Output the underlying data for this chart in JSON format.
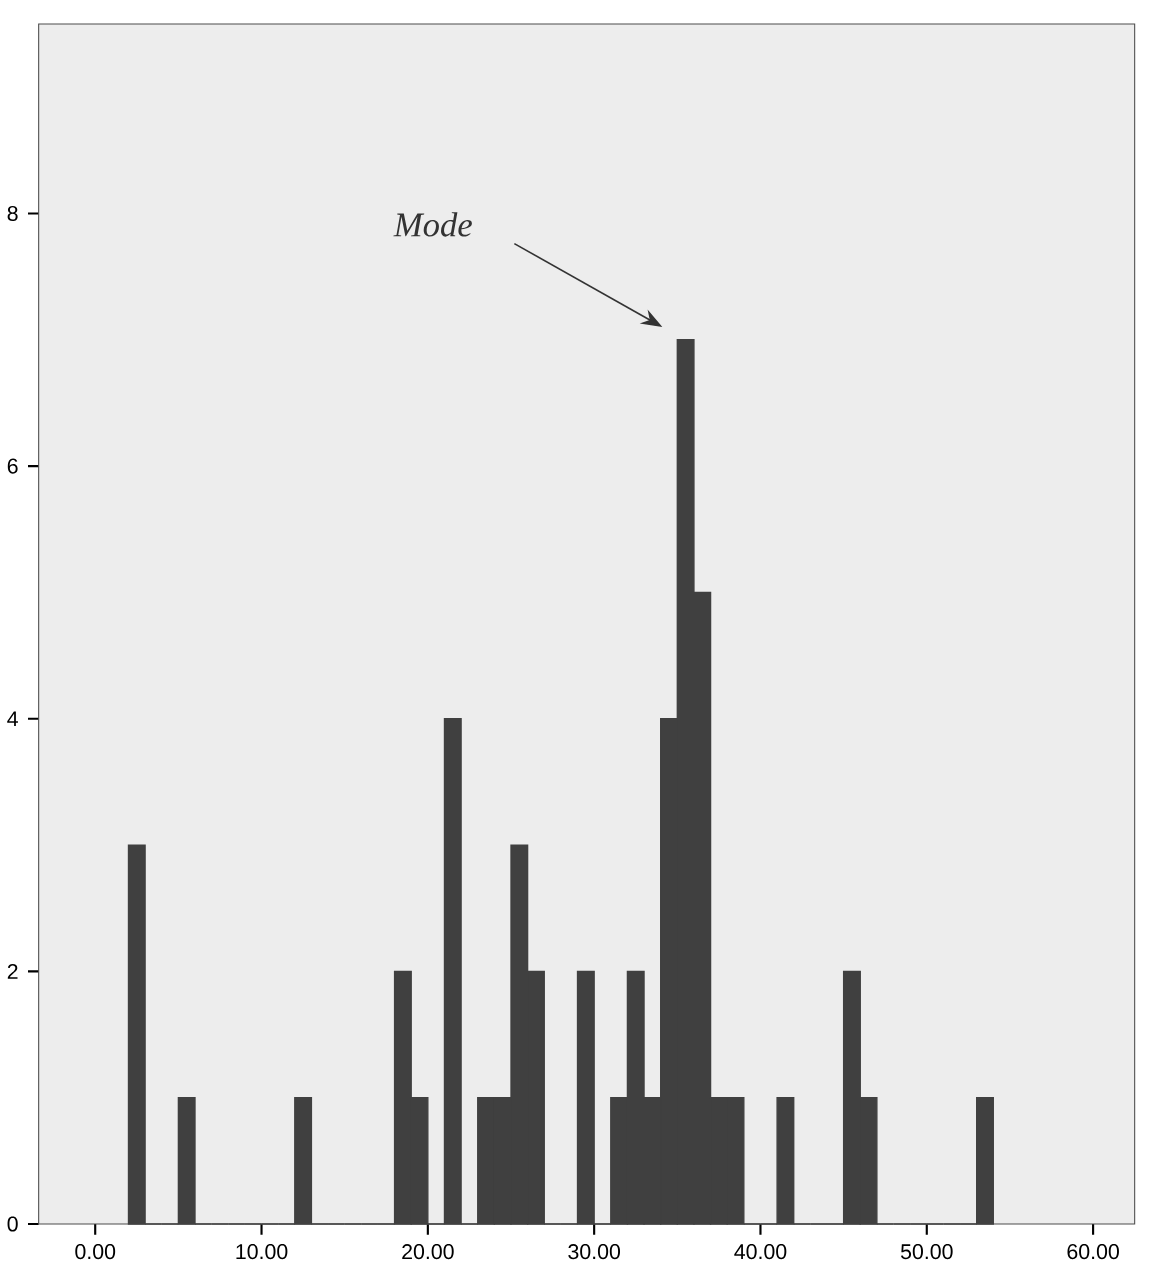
{
  "chart_data": {
    "type": "histogram",
    "color": "#404040",
    "bins": [
      2,
      3,
      4,
      5,
      6,
      7,
      8,
      9,
      10,
      11,
      12,
      13,
      14,
      15,
      16,
      17,
      18,
      19,
      20,
      21,
      22,
      23,
      24,
      25,
      26,
      27,
      28,
      29,
      30,
      31,
      32,
      33,
      34,
      35,
      36,
      37,
      38,
      39,
      40,
      41,
      42,
      43,
      44,
      45,
      46,
      47,
      48,
      49,
      50,
      51,
      52,
      53,
      54
    ],
    "values": [
      3,
      0,
      0,
      1,
      0,
      0,
      0,
      0,
      0,
      0,
      1,
      0,
      0,
      0,
      0,
      0,
      2,
      1,
      0,
      4,
      0,
      1,
      1,
      3,
      2,
      0,
      0,
      2,
      0,
      1,
      2,
      1,
      4,
      7,
      5,
      1,
      1,
      0,
      0,
      1,
      0,
      0,
      0,
      2,
      1,
      0,
      0,
      0,
      0,
      0,
      0,
      1
    ],
    "xlim": [
      -3.4,
      62.5
    ],
    "ylim": [
      0,
      9.5
    ],
    "xticks": [
      {
        "value": 0,
        "label": "0.00"
      },
      {
        "value": 10,
        "label": "10.00"
      },
      {
        "value": 20,
        "label": "20.00"
      },
      {
        "value": 30,
        "label": "30.00"
      },
      {
        "value": 40,
        "label": "40.00"
      },
      {
        "value": 50,
        "label": "50.00"
      },
      {
        "value": 60,
        "label": "60.00"
      }
    ],
    "yticks": [
      0,
      2,
      4,
      6,
      8
    ],
    "annotations": [
      "Mode"
    ]
  }
}
